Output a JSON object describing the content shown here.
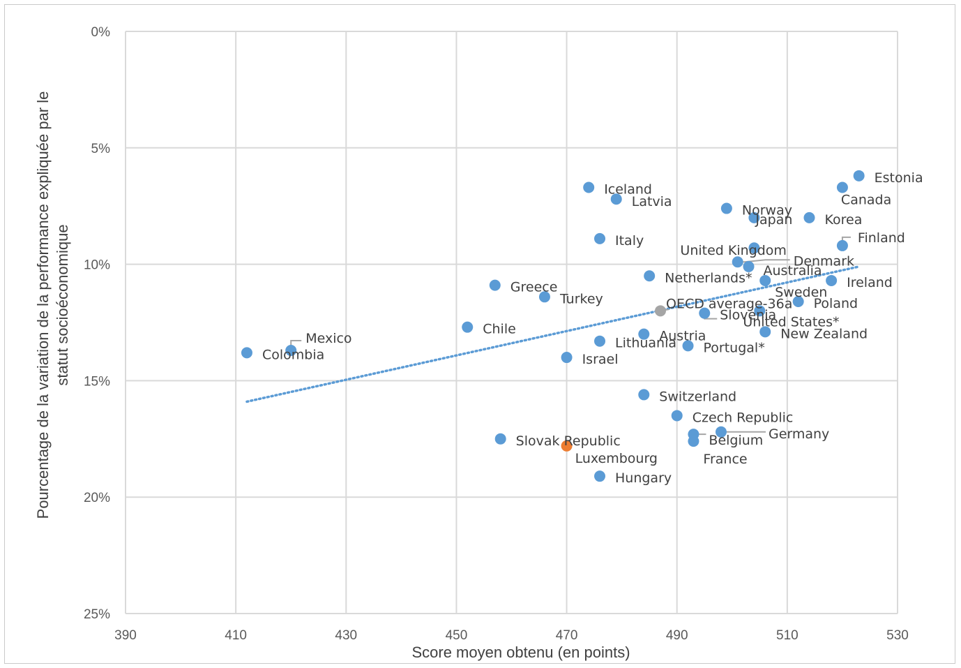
{
  "chart_data": {
    "type": "scatter",
    "title": "",
    "xlabel": "Score moyen obtenu (en points)",
    "ylabel_lines": [
      "Pourcentage de la variation de la performance expliquée par le",
      "statut socioéconomique"
    ],
    "xlim": [
      390,
      530
    ],
    "ylim": [
      0,
      25
    ],
    "y_inverted": true,
    "x_ticks": [
      "390",
      "410",
      "430",
      "450",
      "470",
      "490",
      "510",
      "530"
    ],
    "y_ticks": [
      "0%",
      "5%",
      "10%",
      "15%",
      "20%",
      "25%"
    ],
    "grid": true,
    "colors": {
      "point": "#5b9bd5",
      "highlight": "#ed7d31",
      "average": "#a5a5a5",
      "grid": "#d9d9d9",
      "trend": "#5b9bd5",
      "leader": "#a5a5a5"
    },
    "trendline": {
      "style": "dotted",
      "start": [
        412,
        15.9
      ],
      "end": [
        523,
        10.1
      ]
    },
    "points": [
      {
        "label": "Estonia",
        "x": 523,
        "y": 6.2
      },
      {
        "label": "Canada",
        "x": 520,
        "y": 6.7
      },
      {
        "label": "Iceland",
        "x": 474,
        "y": 6.7
      },
      {
        "label": "Latvia",
        "x": 479,
        "y": 7.2
      },
      {
        "label": "Norway",
        "x": 499,
        "y": 7.6
      },
      {
        "label": "Japan",
        "x": 504,
        "y": 8.0
      },
      {
        "label": "Korea",
        "x": 514,
        "y": 8.0
      },
      {
        "label": "Italy",
        "x": 476,
        "y": 8.9
      },
      {
        "label": "Finland",
        "x": 520,
        "y": 9.2
      },
      {
        "label": "United Kingdom",
        "x": 504,
        "y": 9.3
      },
      {
        "label": "Denmark",
        "x": 501,
        "y": 9.9
      },
      {
        "label": "Australia",
        "x": 503,
        "y": 10.1
      },
      {
        "label": "Netherlands*",
        "x": 485,
        "y": 10.5
      },
      {
        "label": "Sweden",
        "x": 506,
        "y": 10.7
      },
      {
        "label": "Ireland",
        "x": 518,
        "y": 10.7
      },
      {
        "label": "Greece",
        "x": 457,
        "y": 10.9
      },
      {
        "label": "Turkey",
        "x": 466,
        "y": 11.4
      },
      {
        "label": "Poland",
        "x": 512,
        "y": 11.6
      },
      {
        "label": "OECD average-36a",
        "x": 487,
        "y": 12.0,
        "kind": "average"
      },
      {
        "label": "United States*",
        "x": 505,
        "y": 12.0
      },
      {
        "label": "Slovenia",
        "x": 495,
        "y": 12.1
      },
      {
        "label": "Chile",
        "x": 452,
        "y": 12.7
      },
      {
        "label": "New Zealand",
        "x": 506,
        "y": 12.9
      },
      {
        "label": "Austria",
        "x": 484,
        "y": 13.0
      },
      {
        "label": "Lithuania",
        "x": 476,
        "y": 13.3
      },
      {
        "label": "Portugal*",
        "x": 492,
        "y": 13.5
      },
      {
        "label": "Mexico",
        "x": 420,
        "y": 13.7
      },
      {
        "label": "Colombia",
        "x": 412,
        "y": 13.8
      },
      {
        "label": "Israel",
        "x": 470,
        "y": 14.0
      },
      {
        "label": "Switzerland",
        "x": 484,
        "y": 15.6
      },
      {
        "label": "Czech Republic",
        "x": 490,
        "y": 16.5
      },
      {
        "label": "Germany",
        "x": 498,
        "y": 17.2
      },
      {
        "label": "Belgium",
        "x": 493,
        "y": 17.3
      },
      {
        "label": "Slovak Republic",
        "x": 458,
        "y": 17.5
      },
      {
        "label": "France",
        "x": 493,
        "y": 17.6
      },
      {
        "label": "Luxembourg",
        "x": 470,
        "y": 17.8,
        "kind": "highlight"
      },
      {
        "label": "Hungary",
        "x": 476,
        "y": 19.1
      }
    ]
  }
}
